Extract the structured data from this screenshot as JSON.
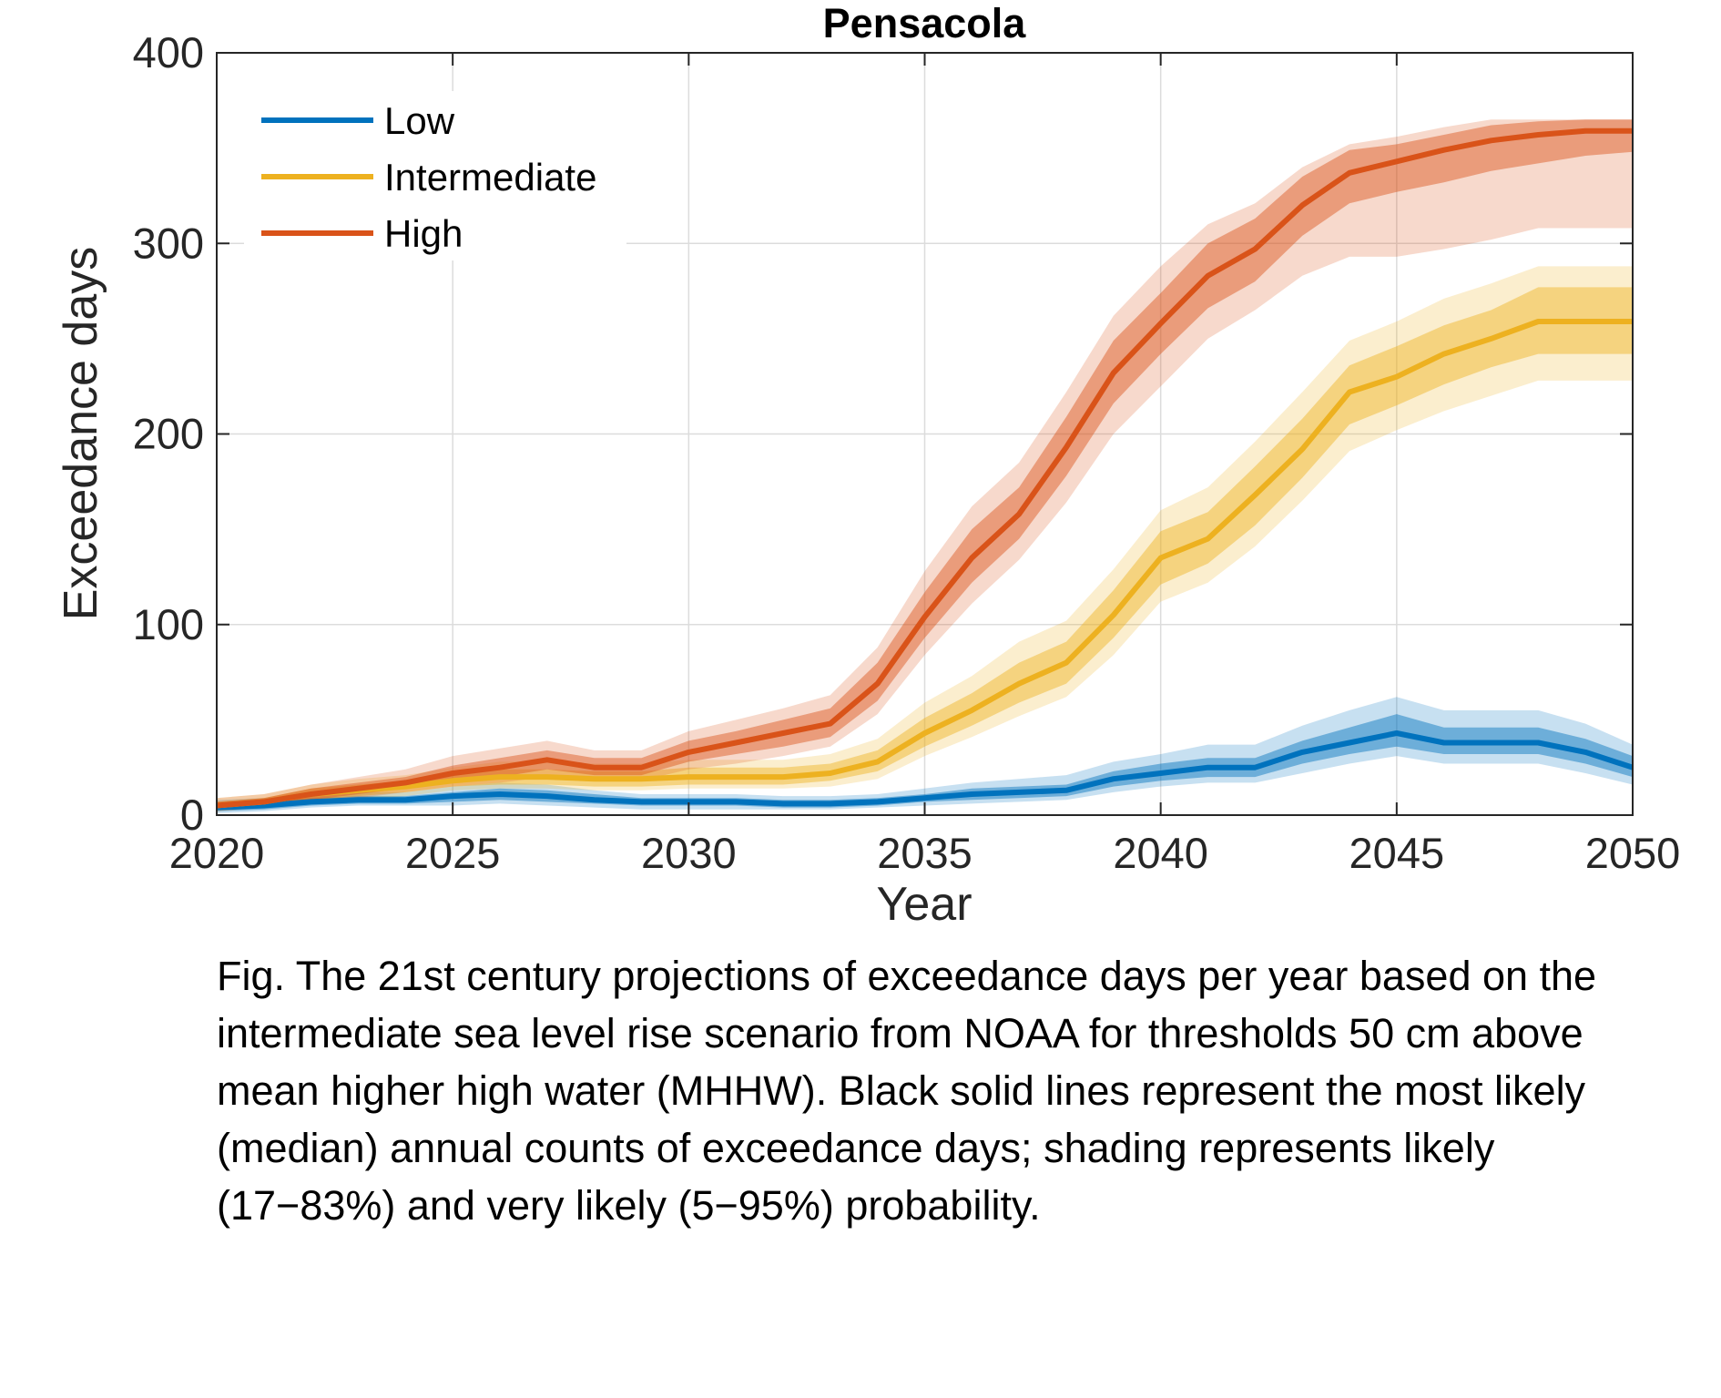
{
  "chart_data": {
    "type": "line",
    "title": "Pensacola",
    "xlabel": "Year",
    "ylabel": "Exceedance days",
    "xlim": [
      2020,
      2050
    ],
    "ylim": [
      0,
      400
    ],
    "xticks": [
      2020,
      2025,
      2030,
      2035,
      2040,
      2045,
      2050
    ],
    "yticks": [
      0,
      100,
      200,
      300,
      400
    ],
    "grid": true,
    "legend_position": "top-left",
    "x": [
      2020,
      2021,
      2022,
      2023,
      2024,
      2025,
      2026,
      2027,
      2028,
      2029,
      2030,
      2031,
      2032,
      2033,
      2034,
      2035,
      2036,
      2037,
      2038,
      2039,
      2040,
      2041,
      2042,
      2043,
      2044,
      2045,
      2046,
      2047,
      2048,
      2049,
      2050
    ],
    "series": [
      {
        "name": "Low",
        "color": "#0072BD",
        "median": [
          4,
          5,
          7,
          8,
          8,
          10,
          11,
          10,
          8,
          7,
          7,
          7,
          6,
          6,
          7,
          9,
          11,
          12,
          13,
          19,
          22,
          25,
          25,
          33,
          38,
          43,
          38,
          38,
          38,
          33,
          25
        ],
        "likely_low": [
          2,
          3,
          5,
          6,
          6,
          7,
          8,
          7,
          6,
          5,
          5,
          5,
          4,
          4,
          5,
          7,
          8,
          9,
          10,
          15,
          18,
          20,
          20,
          27,
          32,
          36,
          32,
          32,
          32,
          27,
          20
        ],
        "likely_high": [
          6,
          7,
          9,
          10,
          10,
          12,
          14,
          13,
          11,
          9,
          9,
          9,
          8,
          8,
          9,
          11,
          14,
          15,
          16,
          23,
          27,
          30,
          30,
          39,
          46,
          53,
          46,
          46,
          46,
          40,
          31
        ],
        "very_low": [
          1,
          2,
          4,
          5,
          5,
          5,
          6,
          5,
          4,
          3,
          3,
          3,
          3,
          3,
          4,
          5,
          6,
          7,
          8,
          12,
          15,
          17,
          17,
          22,
          27,
          31,
          27,
          27,
          27,
          22,
          16
        ],
        "very_high": [
          8,
          9,
          11,
          12,
          12,
          15,
          17,
          16,
          13,
          11,
          11,
          11,
          10,
          10,
          11,
          14,
          17,
          19,
          21,
          28,
          32,
          37,
          37,
          47,
          55,
          62,
          55,
          55,
          55,
          48,
          37
        ]
      },
      {
        "name": "Intermediate",
        "color": "#EDB120",
        "median": [
          5,
          7,
          11,
          13,
          15,
          18,
          20,
          20,
          19,
          19,
          20,
          20,
          20,
          22,
          28,
          43,
          55,
          69,
          80,
          105,
          135,
          145,
          168,
          192,
          222,
          230,
          242,
          250,
          259,
          259,
          259
        ],
        "likely_low": [
          3,
          5,
          8,
          10,
          12,
          15,
          16,
          16,
          15,
          15,
          16,
          16,
          16,
          18,
          23,
          36,
          47,
          59,
          69,
          93,
          121,
          132,
          152,
          177,
          205,
          215,
          226,
          235,
          242,
          242,
          242
        ],
        "likely_high": [
          7,
          9,
          14,
          16,
          18,
          22,
          24,
          24,
          23,
          23,
          25,
          25,
          25,
          27,
          34,
          51,
          64,
          80,
          91,
          118,
          149,
          159,
          183,
          208,
          236,
          246,
          257,
          265,
          277,
          277,
          277
        ],
        "very_low": [
          2,
          4,
          7,
          8,
          10,
          13,
          14,
          14,
          13,
          13,
          14,
          14,
          14,
          15,
          19,
          31,
          41,
          52,
          62,
          84,
          112,
          122,
          141,
          165,
          191,
          202,
          212,
          220,
          228,
          228,
          228
        ],
        "very_high": [
          9,
          11,
          16,
          19,
          21,
          25,
          28,
          28,
          27,
          27,
          29,
          29,
          29,
          32,
          40,
          59,
          73,
          91,
          102,
          129,
          160,
          172,
          196,
          222,
          249,
          259,
          271,
          279,
          288,
          288,
          288
        ]
      },
      {
        "name": "High",
        "color": "#D95319",
        "median": [
          5,
          7,
          11,
          14,
          17,
          22,
          25,
          29,
          25,
          25,
          33,
          38,
          43,
          48,
          69,
          104,
          135,
          158,
          193,
          232,
          258,
          283,
          297,
          320,
          337,
          343,
          349,
          354,
          357,
          359,
          359
        ],
        "likely_low": [
          3,
          5,
          8,
          11,
          14,
          18,
          20,
          24,
          21,
          21,
          28,
          32,
          36,
          41,
          60,
          93,
          122,
          145,
          178,
          216,
          242,
          266,
          280,
          304,
          321,
          327,
          332,
          338,
          342,
          346,
          348
        ],
        "likely_high": [
          7,
          9,
          14,
          17,
          20,
          26,
          30,
          34,
          30,
          30,
          39,
          44,
          50,
          56,
          80,
          117,
          150,
          172,
          209,
          249,
          274,
          300,
          313,
          335,
          349,
          352,
          357,
          362,
          364,
          365,
          365
        ],
        "very_low": [
          2,
          4,
          7,
          9,
          12,
          15,
          17,
          20,
          18,
          18,
          24,
          27,
          31,
          36,
          53,
          84,
          111,
          134,
          164,
          200,
          225,
          250,
          265,
          283,
          293,
          293,
          297,
          302,
          308,
          308,
          308
        ],
        "very_high": [
          9,
          11,
          16,
          20,
          24,
          31,
          35,
          39,
          34,
          34,
          44,
          50,
          56,
          63,
          88,
          128,
          162,
          185,
          222,
          262,
          288,
          310,
          321,
          340,
          352,
          356,
          361,
          365,
          365,
          365,
          365
        ]
      }
    ]
  },
  "caption": "Fig. The 21st century projections of exceedance days per year based on the intermediate sea level rise scenario from NOAA for thresholds 50 cm above mean higher high water (MHHW). Black solid lines represent the most likely (median) annual counts of exceedance days; shading represents likely (17−83%) and very likely (5−95%) probability."
}
